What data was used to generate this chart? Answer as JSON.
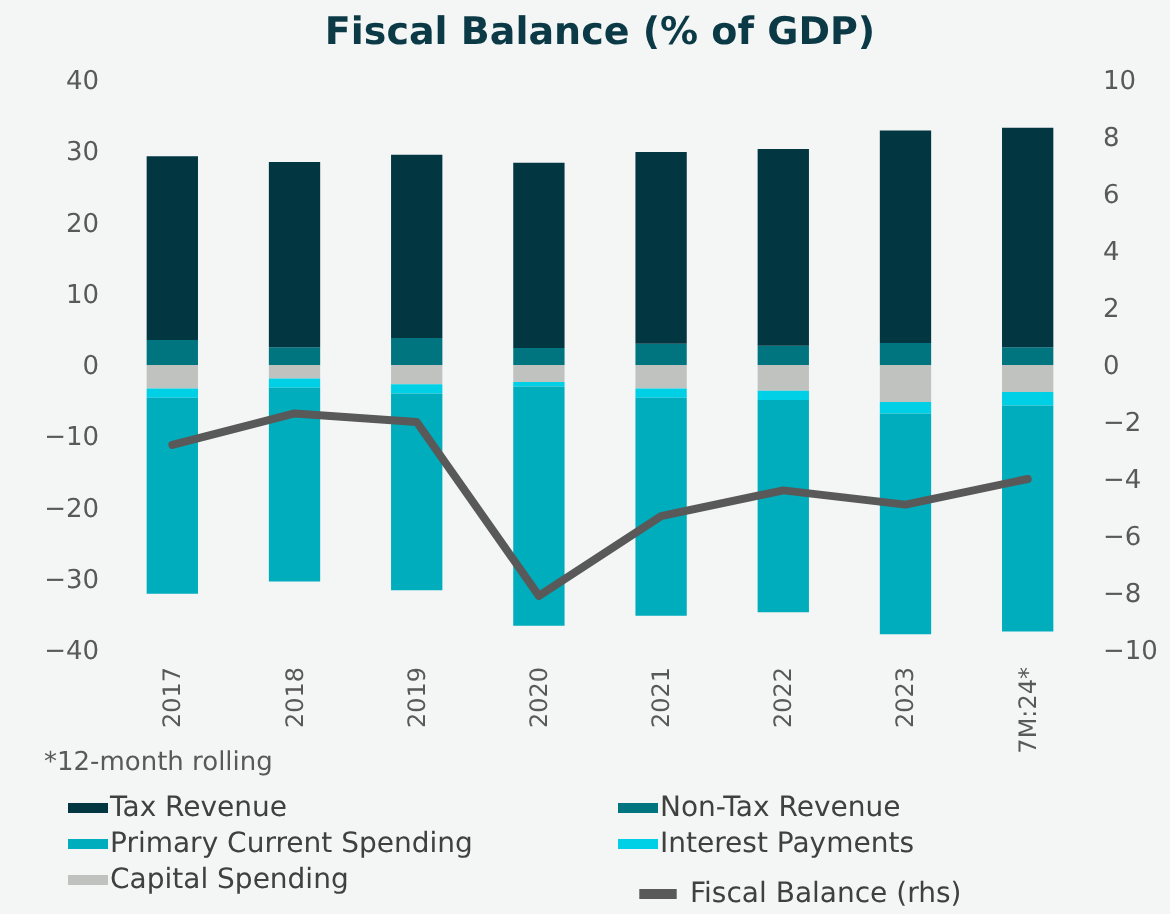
{
  "chart_data": {
    "type": "bar",
    "title": "Fiscal Balance (% of GDP)",
    "stacked": true,
    "categories": [
      "2017",
      "2018",
      "2019",
      "2020",
      "2021",
      "2022",
      "2023",
      "7M:24*"
    ],
    "series": [
      {
        "name": "Non-Tax Revenue",
        "color": "#007580",
        "values": [
          3.5,
          2.5,
          3.8,
          2.4,
          3.0,
          2.7,
          3.1,
          2.5
        ]
      },
      {
        "name": "Tax Revenue",
        "color": "#023641",
        "values": [
          25.8,
          26.0,
          25.7,
          26.0,
          26.9,
          27.6,
          29.8,
          30.8
        ]
      },
      {
        "name": "Capital Spending",
        "color": "#c0c2c0",
        "values": [
          -3.3,
          -1.9,
          -2.7,
          -2.4,
          -3.3,
          -3.6,
          -5.2,
          -3.8
        ]
      },
      {
        "name": "Interest Payments",
        "color": "#00d0e6",
        "values": [
          -1.3,
          -1.3,
          -1.3,
          -0.6,
          -1.3,
          -1.3,
          -1.6,
          -1.9
        ]
      },
      {
        "name": "Primary Current Spending",
        "color": "#00adbd",
        "values": [
          -27.5,
          -27.2,
          -27.6,
          -33.6,
          -30.6,
          -29.8,
          -31.0,
          -31.7
        ]
      },
      {
        "name": "Fiscal Balance (rhs)",
        "color": "#595959",
        "type": "line",
        "axis": "y2",
        "values": [
          -2.8,
          -1.7,
          -2.0,
          -8.1,
          -5.3,
          -4.4,
          -4.9,
          -4.0
        ]
      }
    ],
    "ylim": [
      -40,
      40
    ],
    "yticks": [
      -40,
      -30,
      -20,
      -10,
      0,
      10,
      20,
      30,
      40
    ],
    "y2lim": [
      -10,
      10
    ],
    "y2ticks": [
      -10,
      -8,
      -6,
      -4,
      -2,
      0,
      2,
      4,
      6,
      8,
      10
    ],
    "grid": false,
    "legend": "bottom",
    "annotations": [
      "*12-month rolling"
    ]
  }
}
